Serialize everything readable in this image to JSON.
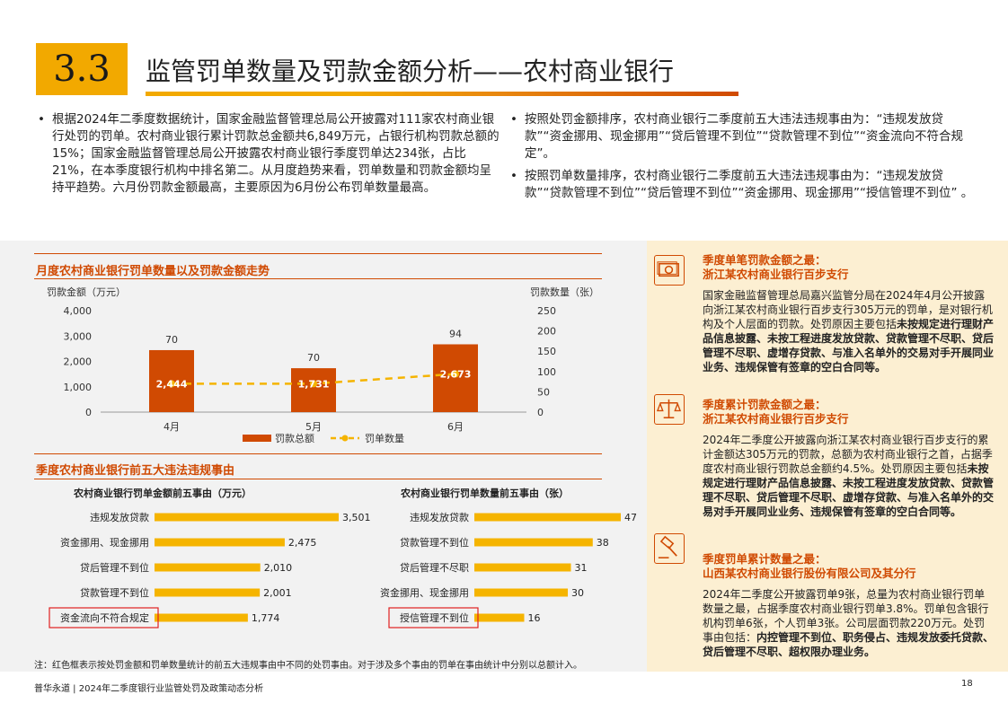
{
  "header": {
    "number": "3.3",
    "title": "监管罚单数量及罚款金额分析——农村商业银行"
  },
  "intro": {
    "left": [
      "根据2024年二季度数据统计，国家金融监督管理总局公开披露对111家农村商业银行处罚的罚单。农村商业银行累计罚款总金额共6,849万元，占银行机构罚款总额的15%；国家金融监督管理总局公开披露农村商业银行季度罚单达234张，占比21%，在本季度银行机构中排名第二。从月度趋势来看，罚单数量和罚款金额均呈持平趋势。六月份罚款金额最高，主要原因为6月份公布罚单数量最高。"
    ],
    "right": [
      "按照处罚金额排序，农村商业银行二季度前五大违法违规事由为：“违规发放贷款”“资金挪用、现金挪用”“贷后管理不到位”“贷款管理不到位”“资金流向不符合规定”。",
      "按照罚单数量排序，农村商业银行二季度前五大违法违规事由为：“违规发放贷款”“贷款管理不到位”“贷后管理不到位”“资金挪用、现金挪用”“授信管理不到位” 。"
    ]
  },
  "monthly": {
    "title": "月度农村商业银行罚单数量以及罚款金额走势",
    "left_axis_label": "罚款金额（万元）",
    "right_axis_label": "罚款数量（张）",
    "left_ticks": [
      "4,000",
      "3,000",
      "2,000",
      "1,000",
      "0"
    ],
    "right_ticks": [
      "250",
      "200",
      "150",
      "100",
      "50",
      "0"
    ],
    "legend_bar": "罚款总额",
    "legend_line": "罚单数量"
  },
  "chart_data": [
    {
      "type": "bar",
      "title": "月度农村商业银行罚单数量以及罚款金额走势",
      "categories": [
        "4月",
        "5月",
        "6月"
      ],
      "series": [
        {
          "name": "罚款总额",
          "values": [
            2444,
            1731,
            2673
          ],
          "labels": [
            "2,444",
            "1,731",
            "2,673"
          ],
          "axis": "left"
        },
        {
          "name": "罚单数量",
          "values": [
            70,
            70,
            94
          ],
          "labels": [
            "70",
            "70",
            "94"
          ],
          "axis": "right",
          "type": "line"
        }
      ],
      "ylim_left": [
        0,
        4000
      ],
      "ylim_right": [
        0,
        250
      ],
      "xlabel": "",
      "ylabel": "罚款金额（万元）",
      "ylabel_right": "罚款数量（张）",
      "legend": "bottom"
    },
    {
      "type": "bar",
      "title": "农村商业银行罚单金额前五事由（万元）",
      "categories": [
        "违规发放贷款",
        "资金挪用、现金挪用",
        "贷后管理不到位",
        "贷款管理不到位",
        "资金流向不符合规定"
      ],
      "values": [
        3501,
        2475,
        2010,
        2001,
        1774
      ],
      "labels": [
        "3,501",
        "2,475",
        "2,010",
        "2,001",
        "1,774"
      ],
      "highlight": [
        false,
        false,
        false,
        false,
        true
      ]
    },
    {
      "type": "bar",
      "title": "农村商业银行罚单数量前五事由（张）",
      "categories": [
        "违规发放贷款",
        "贷款管理不到位",
        "贷后管理不尽职",
        "资金挪用、现金挪用",
        "授信管理不到位"
      ],
      "values": [
        47,
        38,
        31,
        30,
        16
      ],
      "labels": [
        "47",
        "38",
        "31",
        "30",
        "16"
      ],
      "highlight": [
        false,
        false,
        false,
        false,
        true
      ]
    }
  ],
  "top5": {
    "title": "季度农村商业银行前五大违法违规事由"
  },
  "note": "注：红色框表示按处罚金额和罚单数量统计的前五大违规事由中不同的处罚事由。对于涉及多个事由的罚单在事由统计中分别以总额计入。",
  "footer": "普华永道 | 2024年二季度银行业监管处罚及政策动态分析",
  "page": "18",
  "side": [
    {
      "icon": "cash-icon",
      "title": [
        "季度单笔罚款金额之最：",
        "浙江某农村商业银行百步支行"
      ],
      "body": "国家金融监督管理总局嘉兴监管分局在2024年4月公开披露向浙江某农村商业银行百步支行305万元的罚单，是对银行机构及个人层面的罚款。处罚原因主要包括",
      "bold": "未按规定进行理财产品信息披露、未按工程进度发放贷款、贷款管理不尽职、贷后管理不尽职、虚增存贷款、与准入名单外的交易对手开展同业业务、违规保管有签章的空白合同等。"
    },
    {
      "icon": "scale-icon",
      "title": [
        "季度累计罚款金额之最：",
        "浙江某农村商业银行百步支行"
      ],
      "body": "2024年二季度公开披露向浙江某农村商业银行百步支行的累计金额达305万元的罚款，总额为农村商业银行之首，占据季度农村商业银行罚款总金额约4.5%。处罚原因主要包括",
      "bold": "未按规定进行理财产品信息披露、未按工程进度发放贷款、贷款管理不尽职、贷后管理不尽职、虚增存贷款、与准入名单外的交易对手开展同业业务、违规保管有签章的空白合同等。"
    },
    {
      "icon": "gavel-icon",
      "title": [
        "季度罚单累计数量之最：",
        "山西某农村商业银行股份有限公司及其分行"
      ],
      "body": "2024年二季度公开披露罚单9张，总量为农村商业银行罚单数量之最，占据季度农村商业银行罚单3.8%。罚单包含银行机构罚单6张，个人罚单3张。公司层面罚款220万元。处罚事由包括：",
      "bold": "内控管理不到位、职务侵占、违规发放委托贷款、贷后管理不尽职、超权限办理业务。"
    }
  ],
  "colors": {
    "orange": "#d04a02",
    "amber": "#f2a900",
    "bar_orange": "#d04a02",
    "bar_yellow": "#f5b400",
    "box_red": "#e02020"
  }
}
